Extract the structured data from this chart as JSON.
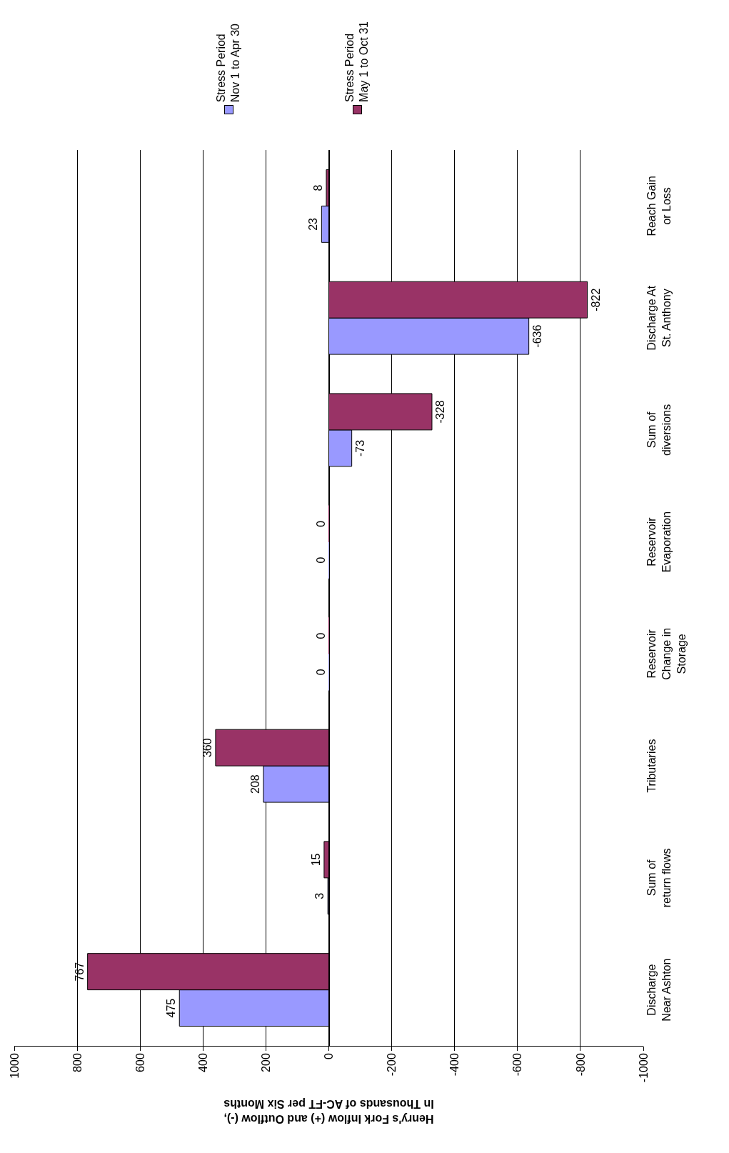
{
  "chart_data": {
    "type": "bar",
    "orientation": "horizontal",
    "xlabel": "Henry's Fork Inflow (+) and Outflow (-), In Thousands of AC-FT per Six Months",
    "categories": [
      "Reach Gain or Loss",
      "Discharge At St. Anthony",
      "Sum of diversions",
      "Reservoir Evaporation",
      "Reservoir Change in Storage",
      "Tributaries",
      "Sum of return flows",
      "Discharge Near Ashton"
    ],
    "series": [
      {
        "name": "Stress Period Nov 1 to Apr 30",
        "color": "#9999ff",
        "values": [
          23,
          -636,
          -73,
          0,
          0,
          208,
          3,
          475
        ]
      },
      {
        "name": "Stress Period May 1 to Oct 31",
        "color": "#993366",
        "values": [
          8,
          -822,
          -328,
          0,
          0,
          360,
          15,
          767
        ]
      }
    ],
    "xlim": [
      1000,
      -1000
    ],
    "xticks": [
      1000,
      800,
      600,
      400,
      200,
      0,
      -200,
      -400,
      -600,
      -800,
      -1000
    ],
    "grid": "x",
    "legend": "top",
    "data_labels": true
  }
}
